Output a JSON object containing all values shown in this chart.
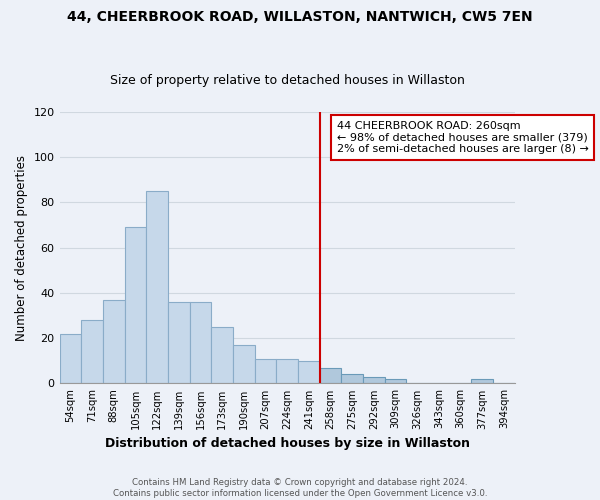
{
  "title": "44, CHEERBROOK ROAD, WILLASTON, NANTWICH, CW5 7EN",
  "subtitle": "Size of property relative to detached houses in Willaston",
  "xlabel": "Distribution of detached houses by size in Willaston",
  "ylabel": "Number of detached properties",
  "bin_labels": [
    "54sqm",
    "71sqm",
    "88sqm",
    "105sqm",
    "122sqm",
    "139sqm",
    "156sqm",
    "173sqm",
    "190sqm",
    "207sqm",
    "224sqm",
    "241sqm",
    "258sqm",
    "275sqm",
    "292sqm",
    "309sqm",
    "326sqm",
    "343sqm",
    "360sqm",
    "377sqm",
    "394sqm"
  ],
  "bar_heights": [
    22,
    28,
    37,
    69,
    85,
    36,
    36,
    25,
    17,
    11,
    11,
    10,
    7,
    4,
    3,
    2,
    0,
    0,
    0,
    2,
    0
  ],
  "bar_color_left": "#c6d8ea",
  "bar_color_right": "#b0c8dc",
  "vline_x_index": 12,
  "vline_color": "#cc0000",
  "annotation_title": "44 CHEERBROOK ROAD: 260sqm",
  "annotation_line1": "← 98% of detached houses are smaller (379)",
  "annotation_line2": "2% of semi-detached houses are larger (8) →",
  "annotation_box_color": "#ffffff",
  "annotation_border_color": "#cc0000",
  "ylim": [
    0,
    120
  ],
  "yticks": [
    0,
    20,
    40,
    60,
    80,
    100,
    120
  ],
  "footer1": "Contains HM Land Registry data © Crown copyright and database right 2024.",
  "footer2": "Contains public sector information licensed under the Open Government Licence v3.0.",
  "bg_color": "#edf1f8",
  "plot_bg_color": "#edf1f8",
  "grid_color": "#d0d8e0",
  "title_fontsize": 10,
  "subtitle_fontsize": 9
}
